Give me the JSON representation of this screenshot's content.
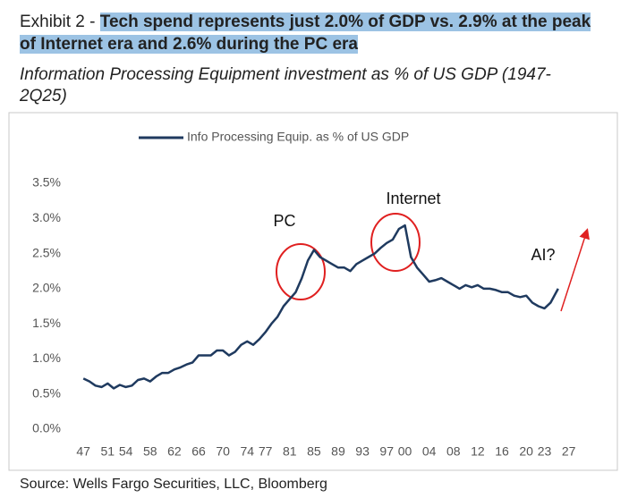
{
  "title_label": "Exhibit 2 -",
  "title": "Tech spend represents just 2.0% of GDP vs. 2.9% at the peak of Internet era and 2.6% during the PC era",
  "subtitle": "Information Processing Equipment investment as % of US GDP (1947-2Q25)",
  "source": "Source: Wells Fargo Securities, LLC, Bloomberg",
  "chart_data": {
    "type": "line",
    "x": [
      1947,
      1948,
      1949,
      1950,
      1951,
      1952,
      1953,
      1954,
      1955,
      1956,
      1957,
      1958,
      1959,
      1960,
      1961,
      1962,
      1963,
      1964,
      1965,
      1966,
      1967,
      1968,
      1969,
      1970,
      1971,
      1972,
      1973,
      1974,
      1975,
      1976,
      1977,
      1978,
      1979,
      1980,
      1981,
      1982,
      1983,
      1984,
      1985,
      1986,
      1987,
      1988,
      1989,
      1990,
      1991,
      1992,
      1993,
      1994,
      1995,
      1996,
      1997,
      1998,
      1999,
      2000,
      2001,
      2002,
      2003,
      2004,
      2005,
      2006,
      2007,
      2008,
      2009,
      2010,
      2011,
      2012,
      2013,
      2014,
      2015,
      2016,
      2017,
      2018,
      2019,
      2020,
      2021,
      2022,
      2023,
      2024,
      2025.25
    ],
    "series": [
      {
        "name": "Info Processing Equip. as % of US GDP",
        "color": "#1f3a5f",
        "values": [
          0.72,
          0.68,
          0.62,
          0.6,
          0.65,
          0.58,
          0.63,
          0.6,
          0.62,
          0.7,
          0.72,
          0.68,
          0.75,
          0.8,
          0.8,
          0.85,
          0.88,
          0.92,
          0.95,
          1.05,
          1.05,
          1.05,
          1.12,
          1.12,
          1.05,
          1.1,
          1.2,
          1.25,
          1.2,
          1.28,
          1.38,
          1.5,
          1.6,
          1.75,
          1.85,
          1.95,
          2.15,
          2.4,
          2.55,
          2.45,
          2.4,
          2.35,
          2.3,
          2.3,
          2.25,
          2.35,
          2.4,
          2.45,
          2.5,
          2.58,
          2.65,
          2.7,
          2.85,
          2.9,
          2.45,
          2.3,
          2.2,
          2.1,
          2.12,
          2.15,
          2.1,
          2.05,
          2.0,
          2.05,
          2.02,
          2.05,
          2.0,
          2.0,
          1.98,
          1.95,
          1.95,
          1.9,
          1.88,
          1.9,
          1.8,
          1.75,
          1.72,
          1.8,
          2.0
        ]
      }
    ],
    "xlim": [
      1945.5,
      2030
    ],
    "ylim": [
      0,
      3.5
    ],
    "yticks": [
      {
        "value": 0,
        "label": "0.0%"
      },
      {
        "value": 0.5,
        "label": "0.5%"
      },
      {
        "value": 1,
        "label": "1.0%"
      },
      {
        "value": 1.5,
        "label": "1.5%"
      },
      {
        "value": 2,
        "label": "2.0%"
      },
      {
        "value": 2.5,
        "label": "2.5%"
      },
      {
        "value": 3,
        "label": "3.0%"
      },
      {
        "value": 3.5,
        "label": "3.5%"
      }
    ],
    "xticks": [
      {
        "value": 1947,
        "label": "47"
      },
      {
        "value": 1951,
        "label": "51"
      },
      {
        "value": 1954,
        "label": "54"
      },
      {
        "value": 1958,
        "label": "58"
      },
      {
        "value": 1962,
        "label": "62"
      },
      {
        "value": 1966,
        "label": "66"
      },
      {
        "value": 1970,
        "label": "70"
      },
      {
        "value": 1974,
        "label": "74"
      },
      {
        "value": 1977,
        "label": "77"
      },
      {
        "value": 1981,
        "label": "81"
      },
      {
        "value": 1985,
        "label": "85"
      },
      {
        "value": 1989,
        "label": "89"
      },
      {
        "value": 1993,
        "label": "93"
      },
      {
        "value": 1997,
        "label": "97"
      },
      {
        "value": 2000,
        "label": "00"
      },
      {
        "value": 2004,
        "label": "04"
      },
      {
        "value": 2008,
        "label": "08"
      },
      {
        "value": 2012,
        "label": "12"
      },
      {
        "value": 2016,
        "label": "16"
      },
      {
        "value": 2020,
        "label": "20"
      },
      {
        "value": 2023,
        "label": "23"
      },
      {
        "value": 2027,
        "label": "27"
      }
    ],
    "grid": false,
    "annotations": [
      "PC",
      "Internet",
      "AI?"
    ]
  }
}
